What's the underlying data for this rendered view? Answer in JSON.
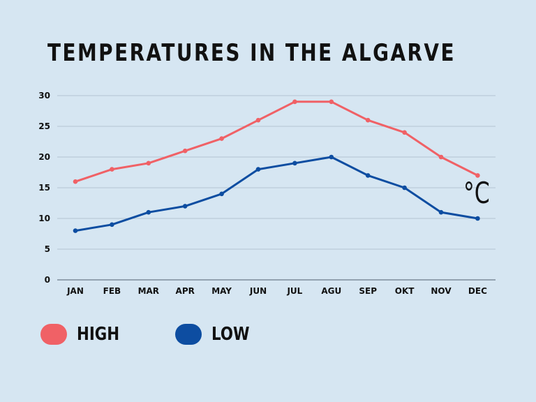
{
  "chart_data": {
    "type": "line",
    "title": "TEMPERATURES IN THE ALGARVE",
    "categories": [
      "JAN",
      "FEB",
      "MAR",
      "APR",
      "MAY",
      "JUN",
      "JUL",
      "AGU",
      "SEP",
      "OKT",
      "NOV",
      "DEC"
    ],
    "series": [
      {
        "name": "HIGH",
        "color": "#f06166",
        "values": [
          16,
          18,
          19,
          21,
          23,
          26,
          29,
          29,
          26,
          24,
          20,
          17
        ]
      },
      {
        "name": "LOW",
        "color": "#0d4da1",
        "values": [
          8,
          9,
          11,
          12,
          14,
          18,
          19,
          20,
          17,
          15,
          11,
          10
        ]
      }
    ],
    "yticks": [
      0,
      5,
      10,
      15,
      20,
      25,
      30
    ],
    "ylim": [
      0,
      30
    ],
    "unit": "°C",
    "grid": true,
    "legend_position": "bottom-left"
  },
  "colors": {
    "background": "#d6e6f2",
    "grid": "#a9b8c6",
    "axis": "#6b7a88"
  }
}
